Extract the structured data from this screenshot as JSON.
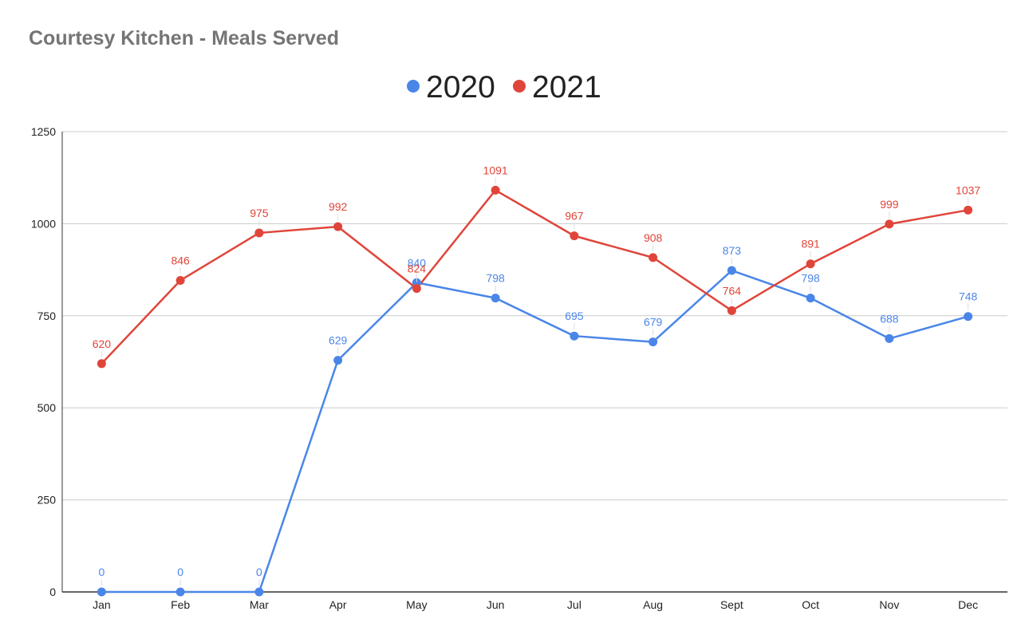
{
  "chart_data": {
    "type": "line",
    "title": "Courtesy Kitchen - Meals Served",
    "xlabel": "",
    "ylabel": "",
    "ylim": [
      0,
      1250
    ],
    "yticks": [
      0,
      250,
      500,
      750,
      1000,
      1250
    ],
    "grid": true,
    "legend_position": "top-center",
    "categories": [
      "Jan",
      "Feb",
      "Mar",
      "Apr",
      "May",
      "Jun",
      "Jul",
      "Aug",
      "Sept",
      "Oct",
      "Nov",
      "Dec"
    ],
    "series": [
      {
        "name": "2020",
        "color": "#4a86e8",
        "values": [
          0,
          0,
          0,
          629,
          840,
          798,
          695,
          679,
          873,
          798,
          688,
          748
        ]
      },
      {
        "name": "2021",
        "color": "#e0453a",
        "values": [
          620,
          846,
          975,
          992,
          824,
          1091,
          967,
          908,
          764,
          891,
          999,
          1037
        ]
      }
    ]
  }
}
